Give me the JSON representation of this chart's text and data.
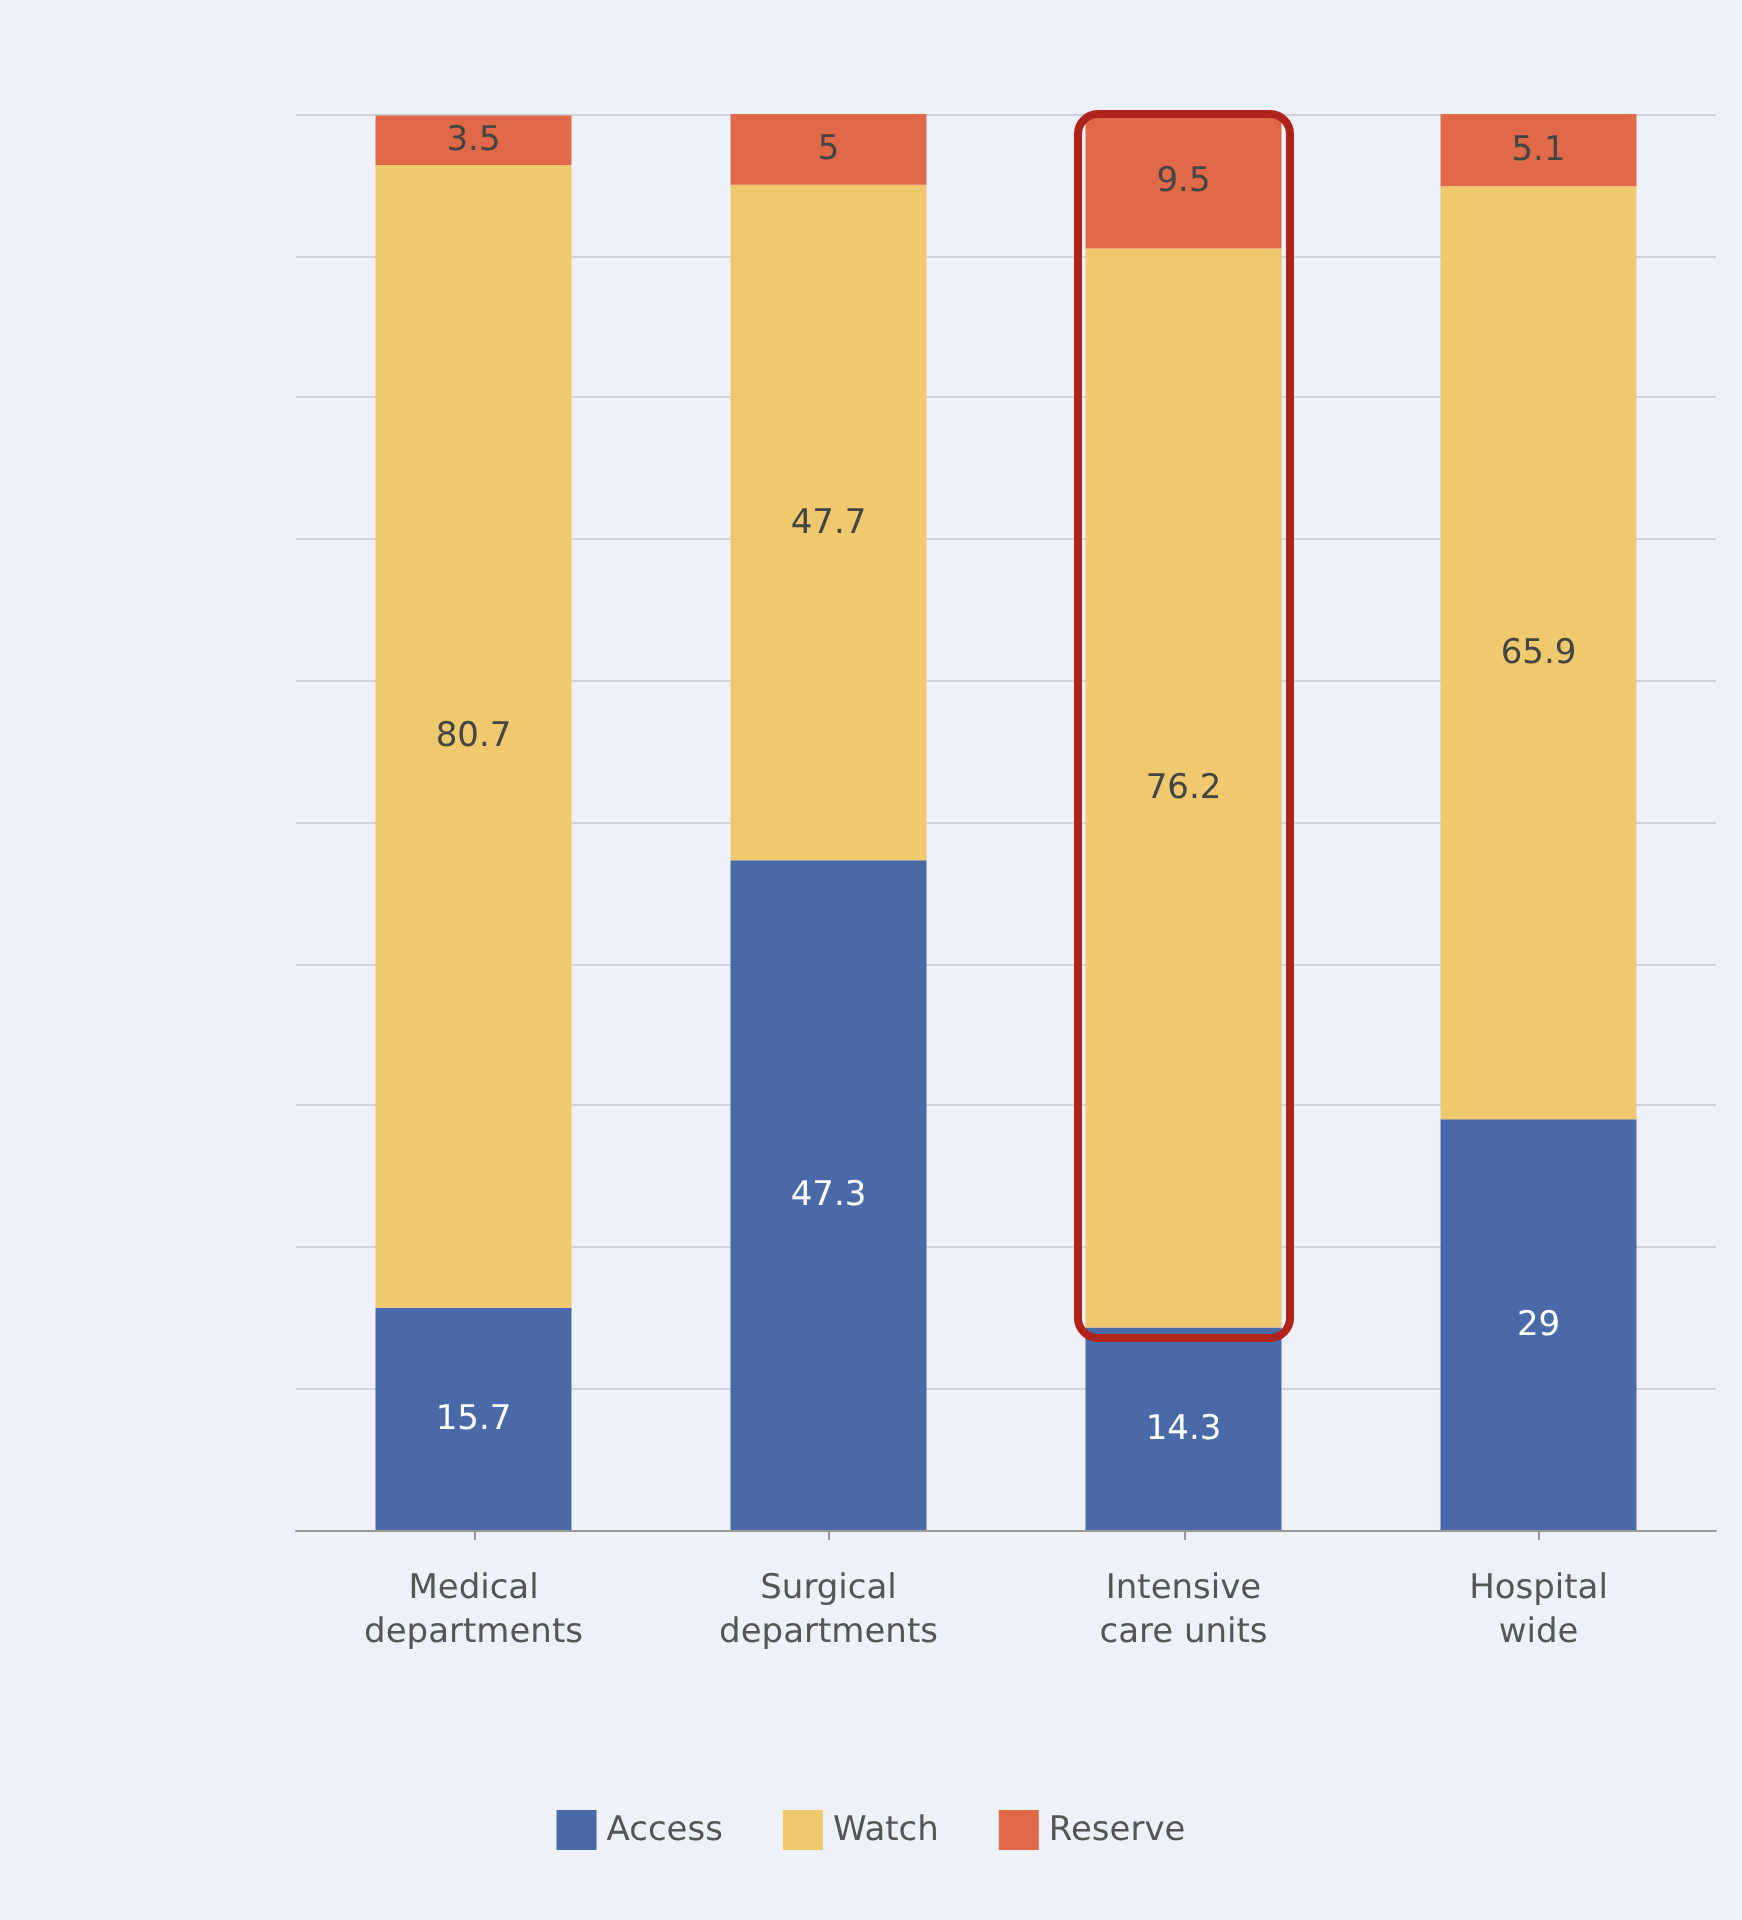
{
  "chart_data": {
    "type": "bar",
    "stacked": true,
    "categories": [
      "Medical\ndepartments",
      "Surgical\ndepartments",
      "Intensive\ncare units",
      "Hospital\nwide"
    ],
    "series": [
      {
        "name": "Access",
        "color": "#4a69a8",
        "values": [
          15.7,
          47.3,
          14.3,
          29
        ]
      },
      {
        "name": "Watch",
        "color": "#f0c96e",
        "values": [
          80.7,
          47.7,
          76.2,
          65.9
        ]
      },
      {
        "name": "Reserve",
        "color": "#e0694a",
        "values": [
          3.5,
          5,
          9.5,
          5.1
        ]
      }
    ],
    "data_labels": true,
    "ylim": [
      0,
      100
    ],
    "yticks": [
      {
        "value": 0,
        "label": null
      },
      {
        "value": 10,
        "label": null
      },
      {
        "value": 20,
        "label": null
      },
      {
        "value": 30,
        "label": null
      },
      {
        "value": 40,
        "label": null
      },
      {
        "value": 50,
        "label": null
      },
      {
        "value": 60,
        "label": null
      },
      {
        "value": 70,
        "label": null
      },
      {
        "value": 80,
        "label": null
      },
      {
        "value": 90,
        "label": null
      },
      {
        "value": 100,
        "label": null
      }
    ],
    "tick_labels": "x",
    "grid": "y",
    "legend": "bottom"
  }
}
